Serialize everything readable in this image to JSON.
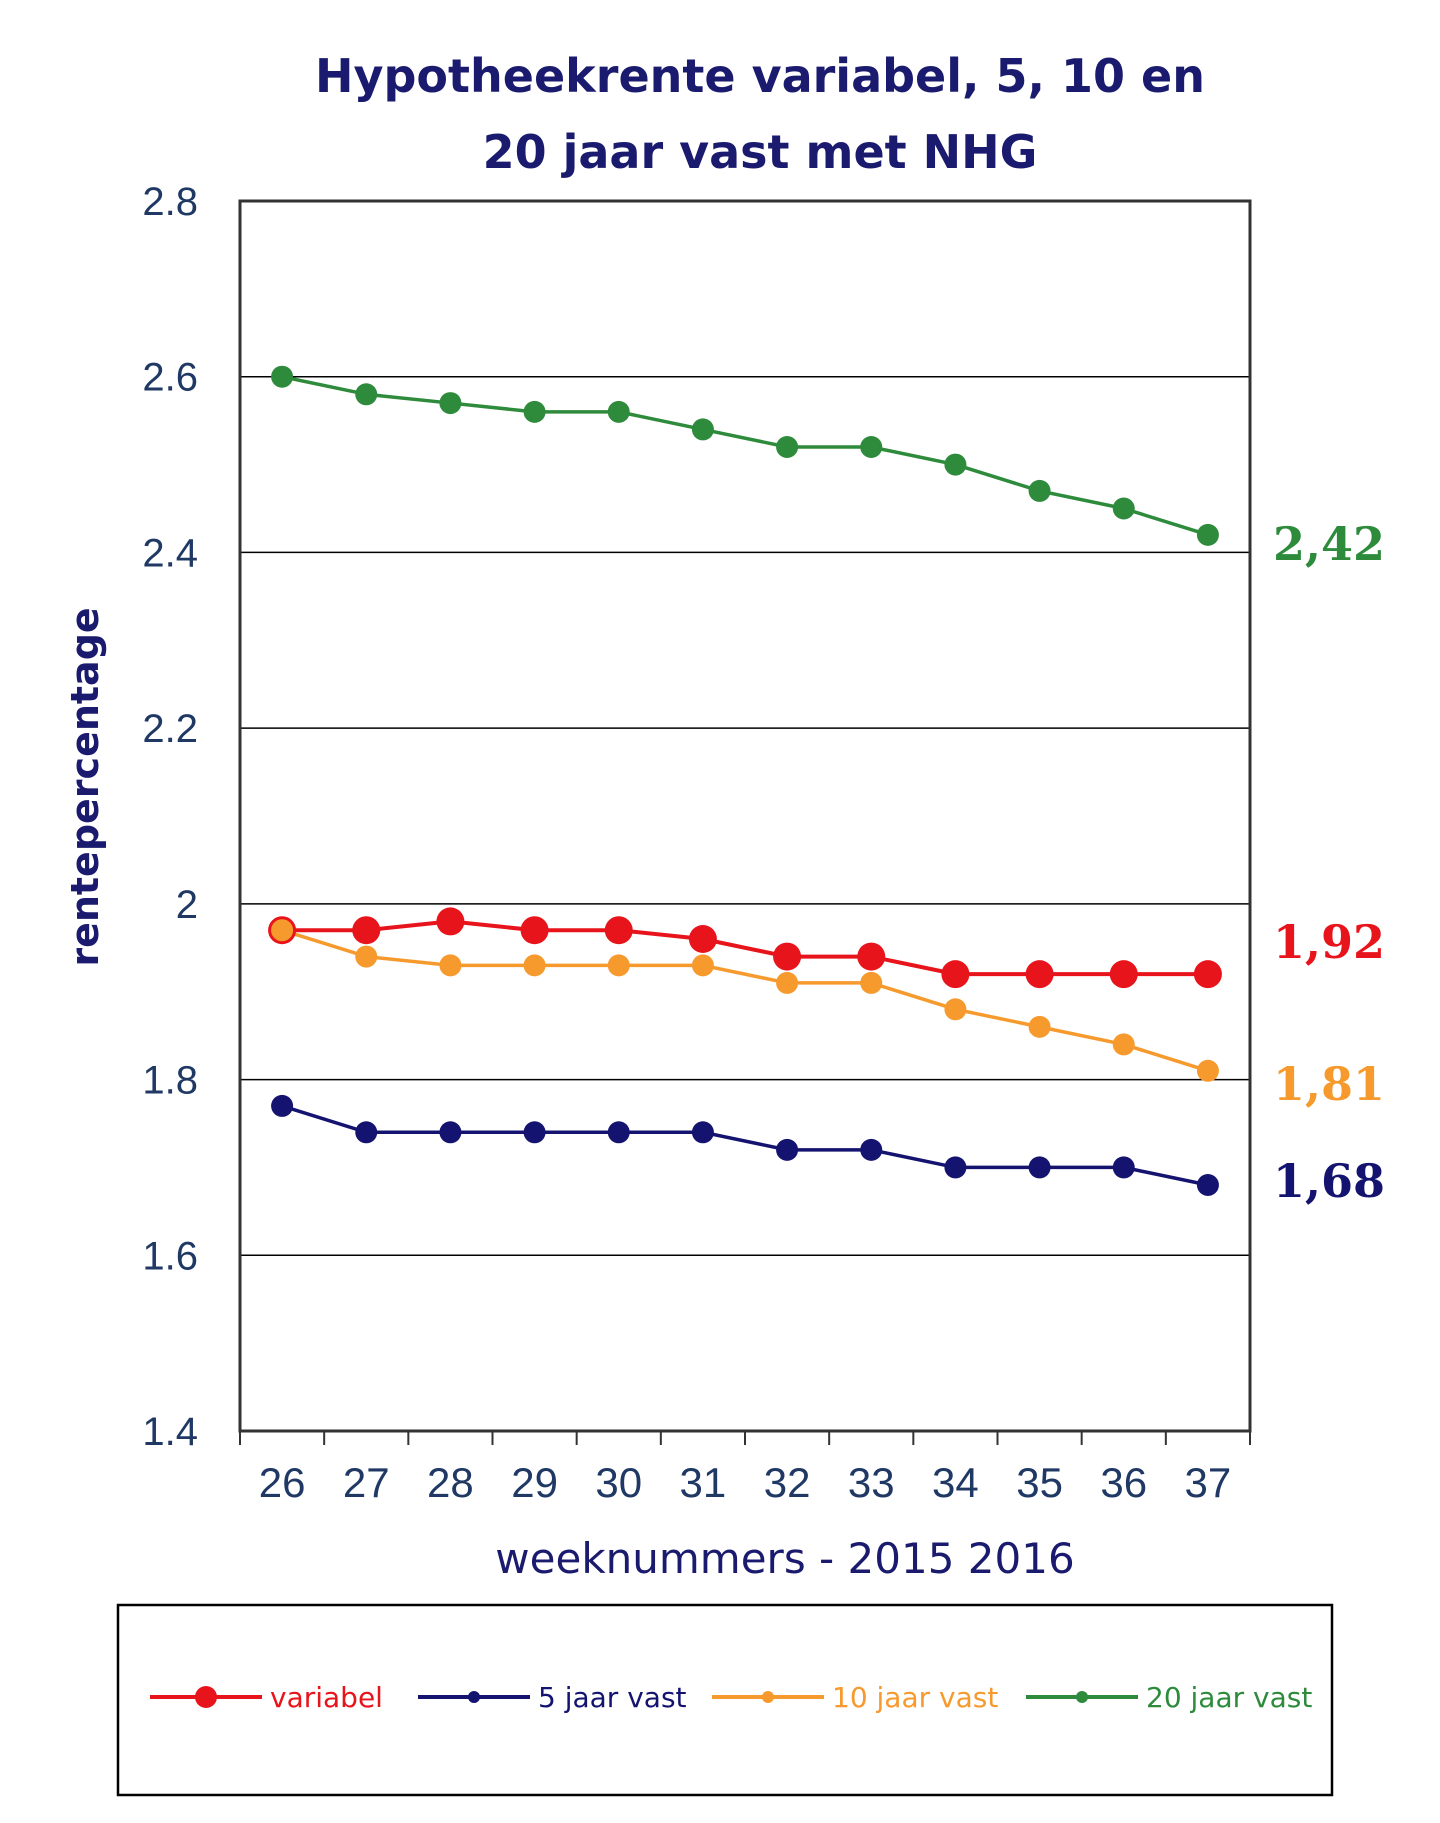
{
  "chart_data": {
    "type": "line",
    "title_lines": [
      "Hypotheekrente variabel, 5, 10 en",
      "20 jaar vast met NHG"
    ],
    "xlabel": "weeknummers - 2015 2016",
    "ylabel": "rentepercentage",
    "categories": [
      "26",
      "27",
      "28",
      "29",
      "30",
      "31",
      "32",
      "33",
      "34",
      "35",
      "36",
      "37"
    ],
    "ylim": [
      1.4,
      2.8
    ],
    "yticks": [
      {
        "value": 1.4,
        "label": "1.4"
      },
      {
        "value": 1.6,
        "label": "1.6"
      },
      {
        "value": 1.8,
        "label": "1.8"
      },
      {
        "value": 2.0,
        "label": "2"
      },
      {
        "value": 2.2,
        "label": "2.2"
      },
      {
        "value": 2.4,
        "label": "2.4"
      },
      {
        "value": 2.6,
        "label": "2.6"
      },
      {
        "value": 2.8,
        "label": "2.8"
      }
    ],
    "grid": true,
    "legend_position": "bottom",
    "series": [
      {
        "name": "variabel",
        "color": "#e8141b",
        "marker": "large",
        "values": [
          1.97,
          1.97,
          1.98,
          1.97,
          1.97,
          1.96,
          1.94,
          1.94,
          1.92,
          1.92,
          1.92,
          1.92
        ],
        "end_label": "1,92"
      },
      {
        "name": "5 jaar vast",
        "color": "#141470",
        "marker": "medium",
        "values": [
          1.77,
          1.74,
          1.74,
          1.74,
          1.74,
          1.74,
          1.72,
          1.72,
          1.7,
          1.7,
          1.7,
          1.68
        ],
        "end_label": "1,68"
      },
      {
        "name": "10 jaar vast",
        "color": "#f79a2e",
        "marker": "medium",
        "values": [
          1.97,
          1.94,
          1.93,
          1.93,
          1.93,
          1.93,
          1.91,
          1.91,
          1.88,
          1.86,
          1.84,
          1.81
        ],
        "end_label": "1,81"
      },
      {
        "name": "20 jaar vast",
        "color": "#2e8b3c",
        "marker": "medium",
        "values": [
          2.6,
          2.58,
          2.57,
          2.56,
          2.56,
          2.54,
          2.52,
          2.52,
          2.5,
          2.47,
          2.45,
          2.42
        ],
        "end_label": "2,42"
      }
    ]
  },
  "colors": {
    "title": "#1a1a6e",
    "ticks": "#1f3864",
    "grid": "#000000",
    "end_label_variabel": "#e8141b",
    "end_label_5": "#141470",
    "end_label_10": "#f79a2e",
    "end_label_20": "#2e8b3c"
  }
}
